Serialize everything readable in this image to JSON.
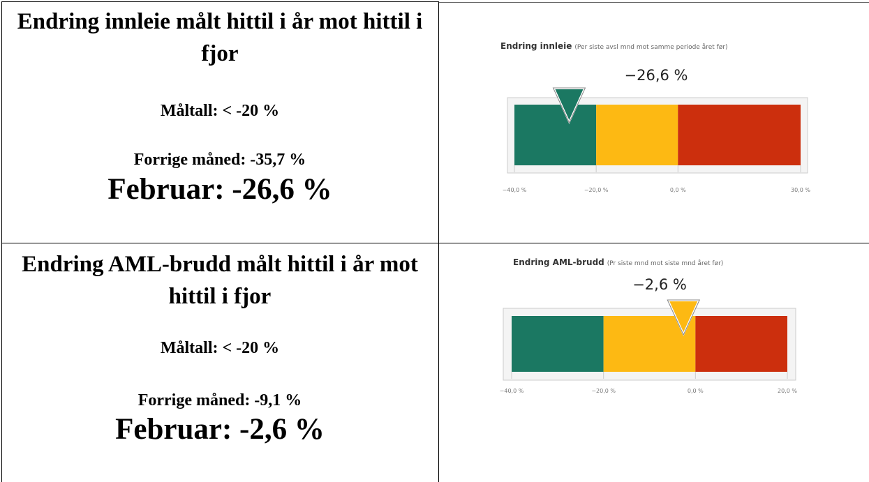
{
  "table": {
    "rows": [
      {
        "heading": "Endring innleie målt hittil i år mot hittil i fjor",
        "target": "Måltall: < -20 %",
        "previous": "Forrige måned: -35,7 %",
        "current": "Februar: -26,6 %"
      },
      {
        "heading": "Endring AML-brudd målt hittil i år mot hittil i fjor",
        "target": "Måltall: < -20 %",
        "previous": "Forrige måned: -9,1 %",
        "current": "Februar: -2,6 %"
      }
    ]
  },
  "chart_data": [
    {
      "type": "gauge",
      "title": "Endring innleie",
      "subtitle": "(Per siste avsl mnd mot samme periode året før)",
      "value": -26.6,
      "value_label": "−26,6 %",
      "xlim": [
        -40,
        30
      ],
      "xticks": [
        {
          "value": -40,
          "label": "−40,0 %"
        },
        {
          "value": -20,
          "label": "−20,0 %"
        },
        {
          "value": 0,
          "label": "0,0 %"
        },
        {
          "value": 30,
          "label": "30,0 %"
        }
      ],
      "bands": [
        {
          "from": -40,
          "to": -20,
          "color": "#1b7862"
        },
        {
          "from": -20,
          "to": 0,
          "color": "#fdb913"
        },
        {
          "from": 0,
          "to": 30,
          "color": "#cc2f0d"
        }
      ]
    },
    {
      "type": "gauge",
      "title": "Endring AML-brudd",
      "subtitle": "(Pr siste mnd mot siste mnd året før)",
      "value": -2.6,
      "value_label": "−2,6 %",
      "xlim": [
        -40,
        20
      ],
      "xticks": [
        {
          "value": -40,
          "label": "−40,0 %"
        },
        {
          "value": -20,
          "label": "−20,0 %"
        },
        {
          "value": 0,
          "label": "0,0 %"
        },
        {
          "value": 20,
          "label": "20,0 %"
        }
      ],
      "bands": [
        {
          "from": -40,
          "to": -20,
          "color": "#1b7862"
        },
        {
          "from": -20,
          "to": 0,
          "color": "#fdb913"
        },
        {
          "from": 0,
          "to": 20,
          "color": "#cc2f0d"
        }
      ]
    }
  ]
}
